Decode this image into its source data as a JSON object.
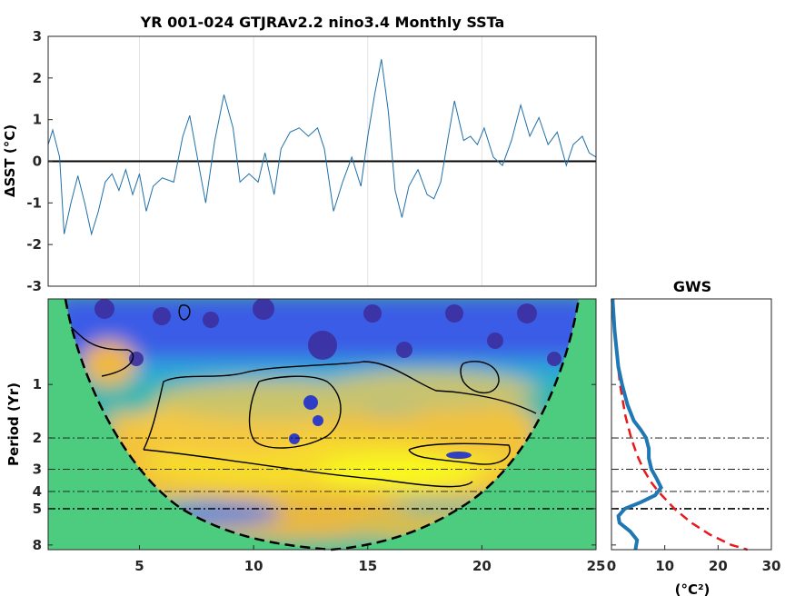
{
  "chart_data": [
    {
      "type": "line",
      "title": "YR 001-024 GTJRAv2.2 nino3.4 Monthly SSTa",
      "ylabel": "ΔSST (°C)",
      "xlim": [
        1,
        25
      ],
      "ylim": [
        -3,
        3
      ],
      "yticks": [
        -3,
        -2,
        -1,
        0,
        1,
        2,
        3
      ],
      "xgrid": [
        5,
        10,
        15,
        20
      ],
      "grid": "vertical",
      "series": [
        {
          "color": "#1f6fa8",
          "x": [
            1.0,
            1.2,
            1.5,
            1.7,
            2.0,
            2.3,
            2.6,
            2.9,
            3.2,
            3.5,
            3.8,
            4.1,
            4.4,
            4.7,
            5.0,
            5.3,
            5.6,
            6.0,
            6.5,
            6.9,
            7.2,
            7.5,
            7.9,
            8.3,
            8.7,
            9.1,
            9.4,
            9.8,
            10.2,
            10.5,
            10.9,
            11.2,
            11.6,
            12.0,
            12.4,
            12.8,
            13.1,
            13.5,
            13.9,
            14.3,
            14.7,
            15.0,
            15.3,
            15.6,
            15.9,
            16.2,
            16.5,
            16.8,
            17.2,
            17.6,
            17.9,
            18.2,
            18.5,
            18.8,
            19.2,
            19.5,
            19.8,
            20.1,
            20.5,
            20.9,
            21.3,
            21.7,
            22.1,
            22.5,
            22.9,
            23.3,
            23.7,
            24.0,
            24.4,
            24.7,
            25.0
          ],
          "y": [
            0.4,
            0.75,
            0.1,
            -1.75,
            -1.0,
            -0.35,
            -1.0,
            -1.75,
            -1.2,
            -0.5,
            -0.3,
            -0.7,
            -0.2,
            -0.8,
            -0.3,
            -1.2,
            -0.6,
            -0.4,
            -0.5,
            0.6,
            1.1,
            0.2,
            -1.0,
            0.5,
            1.6,
            0.8,
            -0.5,
            -0.3,
            -0.5,
            0.2,
            -0.8,
            0.3,
            0.7,
            0.8,
            0.6,
            0.8,
            0.3,
            -1.2,
            -0.5,
            0.1,
            -0.6,
            0.6,
            1.6,
            2.45,
            1.2,
            -0.7,
            -1.35,
            -0.6,
            -0.2,
            -0.8,
            -0.9,
            -0.5,
            0.5,
            1.45,
            0.5,
            0.6,
            0.4,
            0.8,
            0.1,
            -0.1,
            0.5,
            1.35,
            0.6,
            1.05,
            0.4,
            0.7,
            -0.1,
            0.4,
            0.6,
            0.2,
            0.1
          ]
        }
      ],
      "zero_line": 0
    },
    {
      "type": "heatmap",
      "ylabel": "Period (Yr)",
      "xlim": [
        1,
        25
      ],
      "xticks": [
        5,
        10,
        15,
        20,
        25
      ],
      "yscale": "log",
      "yticks": [
        1,
        2,
        3,
        4,
        5,
        8
      ],
      "ylim": [
        0.33,
        8.5
      ],
      "reference_periods": [
        2,
        3,
        4,
        5
      ],
      "colormap": "parula",
      "cone_of_influence": true,
      "significance_contours": true
    },
    {
      "type": "line",
      "title": "GWS",
      "xlabel": "(°C²)",
      "xlim": [
        0,
        30
      ],
      "xticks": [
        0,
        10,
        20,
        30
      ],
      "yscale": "log",
      "yticks": [
        1,
        2,
        3,
        4,
        5,
        8
      ],
      "ylim": [
        0.33,
        8.5
      ],
      "reference_periods": [
        2,
        3,
        4,
        5
      ],
      "series": [
        {
          "color": "#1f78b4",
          "style": "solid",
          "period": [
            0.33,
            0.5,
            0.8,
            1.0,
            1.3,
            1.6,
            1.8,
            2.0,
            2.3,
            2.6,
            3.0,
            3.4,
            3.8,
            4.2,
            4.6,
            5.0,
            5.5,
            6.0,
            6.7,
            7.5,
            8.5
          ],
          "power": [
            0.2,
            0.6,
            1.3,
            2.0,
            3.0,
            4.2,
            5.5,
            6.5,
            7.0,
            7.0,
            7.5,
            8.5,
            9.3,
            8.2,
            5.5,
            2.5,
            1.3,
            1.5,
            3.5,
            4.8,
            4.5
          ]
        },
        {
          "color": "#e8191c",
          "style": "dashed",
          "period": [
            0.33,
            0.6,
            1.0,
            1.5,
            2.0,
            2.5,
            3.0,
            3.5,
            4.0,
            5.0,
            6.0,
            7.0,
            8.0,
            8.5
          ],
          "power": [
            0.3,
            0.8,
            1.6,
            2.6,
            3.7,
            4.8,
            6.0,
            7.3,
            8.8,
            11.8,
            15.0,
            18.5,
            22.5,
            25.5
          ]
        }
      ]
    }
  ]
}
